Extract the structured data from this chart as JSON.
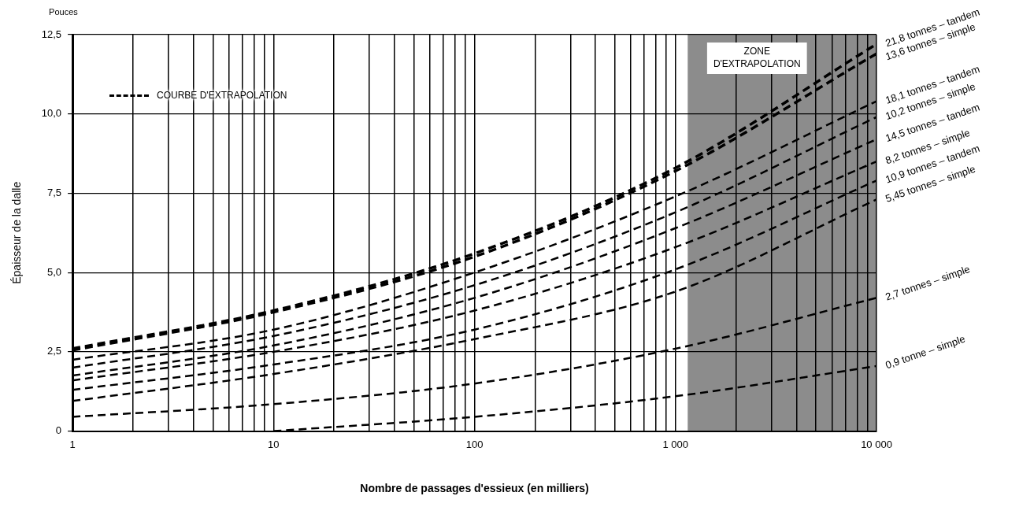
{
  "chart_data": {
    "type": "line",
    "xlabel": "Nombre de passages d'essieux (en milliers)",
    "ylabel": "Épaisseur de la dalle",
    "annotations": [
      "Pouces",
      "COURBE D'EXTRAPOLATION"
    ],
    "x": [
      1,
      10,
      100,
      1000,
      10000
    ],
    "series": [
      {
        "name": "21,8 tonnes – tandem",
        "color": "#000000",
        "values": [
          2.6,
          3.8,
          5.6,
          8.3,
          12.2
        ]
      },
      {
        "name": "13,6 tonnes – simple",
        "color": "#000000",
        "values": [
          2.55,
          3.75,
          5.5,
          8.2,
          11.9
        ]
      },
      {
        "name": "18,1 tonnes – tandem",
        "color": "#000000",
        "values": [
          2.25,
          3.2,
          5.0,
          7.4,
          10.4
        ]
      },
      {
        "name": "10,2 tonnes – simple",
        "color": "#000000",
        "values": [
          2.0,
          3.0,
          4.6,
          6.9,
          9.9
        ]
      },
      {
        "name": "14,5 tonnes – tandem",
        "color": "#000000",
        "values": [
          1.75,
          2.7,
          4.2,
          6.4,
          9.2
        ]
      },
      {
        "name": "8,2 tonnes – simple",
        "color": "#000000",
        "values": [
          1.6,
          2.5,
          3.8,
          5.8,
          8.5
        ]
      },
      {
        "name": "10,9 tonnes – tandem",
        "color": "#000000",
        "values": [
          1.3,
          2.1,
          3.2,
          5.1,
          7.9
        ]
      },
      {
        "name": "5,45 tonnes – simple",
        "color": "#000000",
        "values": [
          0.95,
          1.8,
          2.9,
          4.4,
          7.3
        ]
      },
      {
        "name": "2,7 tonnes – simple",
        "color": "#000000",
        "values": [
          0.45,
          0.85,
          1.5,
          2.6,
          4.2
        ]
      },
      {
        "name": "0,9 tonne – simple",
        "color": "#000000",
        "values": [
          null,
          0,
          0.45,
          1.1,
          2.05
        ]
      }
    ],
    "log": "x",
    "xlim": [
      1,
      10000
    ],
    "xticks": [
      1,
      {
        "value": 2,
        "label": null
      },
      {
        "value": 3,
        "label": null
      },
      {
        "value": 4,
        "label": null
      },
      {
        "value": 5,
        "label": null
      },
      {
        "value": 6,
        "label": null
      },
      {
        "value": 7,
        "label": null
      },
      {
        "value": 8,
        "label": null
      },
      {
        "value": 9,
        "label": null
      },
      10,
      {
        "value": 20,
        "label": null
      },
      {
        "value": 30,
        "label": null
      },
      {
        "value": 40,
        "label": null
      },
      {
        "value": 50,
        "label": null
      },
      {
        "value": 60,
        "label": null
      },
      {
        "value": 70,
        "label": null
      },
      {
        "value": 80,
        "label": null
      },
      {
        "value": 90,
        "label": null
      },
      100,
      {
        "value": 200,
        "label": null
      },
      {
        "value": 300,
        "label": null
      },
      {
        "value": 400,
        "label": null
      },
      {
        "value": 500,
        "label": null
      },
      {
        "value": 600,
        "label": null
      },
      {
        "value": 700,
        "label": null
      },
      {
        "value": 800,
        "label": null
      },
      {
        "value": 900,
        "label": null
      },
      {
        "value": 1000,
        "label": "1 000"
      },
      {
        "value": 2000,
        "label": null
      },
      {
        "value": 3000,
        "label": null
      },
      {
        "value": 4000,
        "label": null
      },
      {
        "value": 5000,
        "label": null
      },
      {
        "value": 6000,
        "label": null
      },
      {
        "value": 7000,
        "label": null
      },
      {
        "value": 8000,
        "label": null
      },
      {
        "value": 9000,
        "label": null
      },
      {
        "value": 10000,
        "label": "10 000"
      }
    ],
    "ylim": [
      0,
      12.5
    ],
    "yticks": [
      0,
      {
        "value": 2.5,
        "label": "2,5"
      },
      {
        "value": 5,
        "label": "5,0"
      },
      {
        "value": 7.5,
        "label": "7,5"
      },
      {
        "value": 10,
        "label": "10,0"
      },
      {
        "value": 12.5,
        "label": "12,5"
      }
    ],
    "bands": [
      {
        "axis": "x",
        "from": 1150,
        "to": 10000,
        "label": "ZONE D'EXTRAPOLATION",
        "color": "#8c8c8c"
      }
    ],
    "grid": true,
    "legend": false,
    "marker": "none",
    "line_style": "dashed"
  }
}
